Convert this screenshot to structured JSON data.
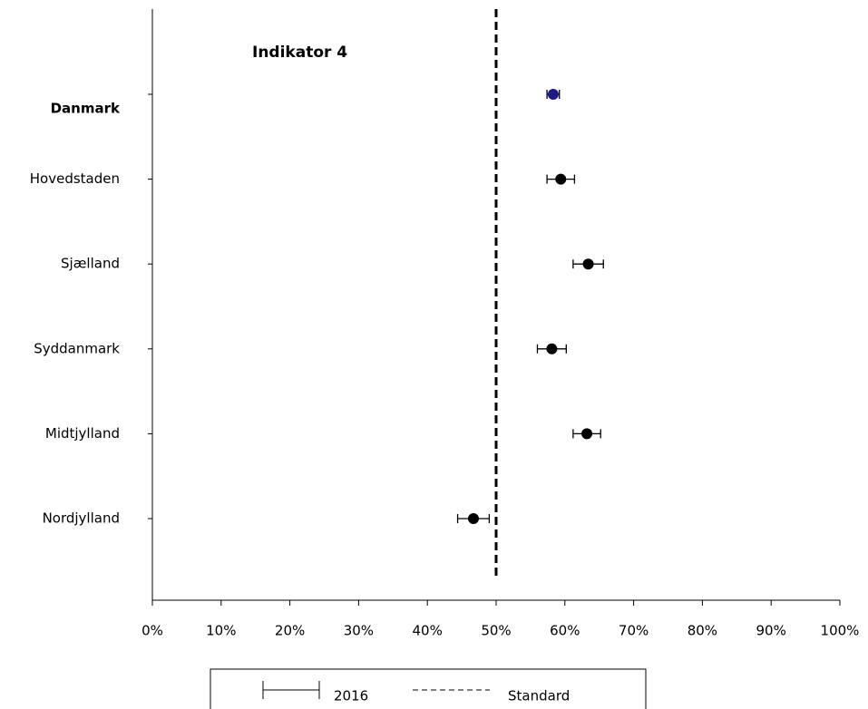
{
  "chart_data": {
    "type": "dot",
    "title": "Indikator 4",
    "categories": [
      "Danmark",
      "Hovedstaden",
      "Sjælland",
      "Syddanmark",
      "Midtjylland",
      "Nordjylland"
    ],
    "series": [
      {
        "name": "2016",
        "color": "#000000",
        "point_colors": [
          "#1a1a8c",
          "#000000",
          "#000000",
          "#000000",
          "#000000",
          "#000000"
        ],
        "values": [
          58.3,
          59.4,
          63.4,
          58.1,
          63.2,
          46.7
        ],
        "errors": [
          0.9,
          2.0,
          2.2,
          2.1,
          2.0,
          2.3
        ]
      }
    ],
    "standard": {
      "name": "Standard",
      "value": 50
    },
    "xlim": [
      0,
      100
    ],
    "xticks": [
      {
        "value": 0,
        "label": "0%"
      },
      {
        "value": 10,
        "label": "10%"
      },
      {
        "value": 20,
        "label": "20%"
      },
      {
        "value": 30,
        "label": "30%"
      },
      {
        "value": 40,
        "label": "40%"
      },
      {
        "value": 50,
        "label": "50%"
      },
      {
        "value": 60,
        "label": "60%"
      },
      {
        "value": 70,
        "label": "70%"
      },
      {
        "value": 80,
        "label": "80%"
      },
      {
        "value": 90,
        "label": "90%"
      },
      {
        "value": 100,
        "label": "100%"
      }
    ]
  }
}
